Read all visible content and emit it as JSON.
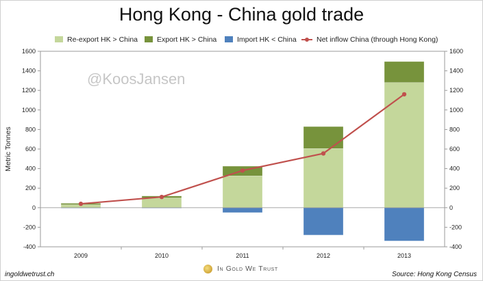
{
  "footer": {
    "site": "ingoldwetrust.ch",
    "brand": "In Gold We Trust",
    "source": "Source: Hong Kong Census"
  },
  "watermark": "@KoosJansen",
  "chart_data": {
    "type": "bar",
    "title": "Hong Kong - China gold trade",
    "ylabel": "Metric Tonnes",
    "xlabel": "",
    "categories": [
      "2009",
      "2010",
      "2011",
      "2012",
      "2013"
    ],
    "ylim": [
      -400,
      1600
    ],
    "yticks": [
      -400,
      -200,
      0,
      200,
      400,
      600,
      800,
      1000,
      1200,
      1400,
      1600
    ],
    "secondary_axis": true,
    "grid": false,
    "legend_position": "top",
    "stacked": true,
    "series": [
      {
        "name": "Re-export HK > China",
        "type": "bar",
        "color": "#c4d79b",
        "values": [
          30,
          100,
          325,
          605,
          1280
        ]
      },
      {
        "name": "Export HK > China",
        "type": "bar",
        "color": "#77933c",
        "values": [
          15,
          20,
          100,
          225,
          215
        ]
      },
      {
        "name": "Import HK < China",
        "type": "bar",
        "color": "#4f81bd",
        "values": [
          -5,
          -5,
          -50,
          -280,
          -340
        ]
      },
      {
        "name": "Net inflow China (through Hong Kong)",
        "type": "line",
        "color": "#c0504d",
        "values": [
          40,
          110,
          380,
          555,
          1160
        ]
      }
    ]
  }
}
